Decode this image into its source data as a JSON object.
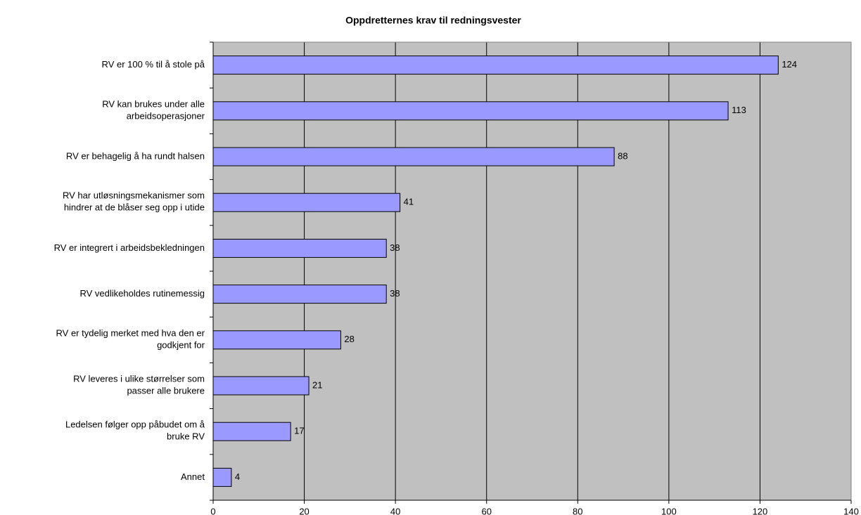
{
  "chart_data": {
    "type": "barh",
    "title": "Oppdretternes krav til redningsvester",
    "categories": [
      "RV er 100 % til å stole på",
      "RV kan brukes under alle\narbeidsoperasjoner",
      "RV er behagelig å ha rundt halsen",
      "RV har utløsningsmekanismer som\nhindrer at de blåser seg opp i utide",
      "RV er integrert i arbeidsbekledningen",
      "RV vedlikeholdes rutinemessig",
      "RV er tydelig merket med hva den er\ngodkjent for",
      "RV leveres i ulike størrelser som\npasser alle brukere",
      "Ledelsen følger opp påbudet om å\nbruke RV",
      "Annet"
    ],
    "values": [
      124,
      113,
      88,
      41,
      38,
      38,
      28,
      21,
      17,
      4
    ],
    "color": "#9999ff",
    "xlim": [
      0,
      140
    ],
    "xticks": [
      0,
      20,
      40,
      60,
      80,
      100,
      120,
      140
    ],
    "grid": true
  }
}
